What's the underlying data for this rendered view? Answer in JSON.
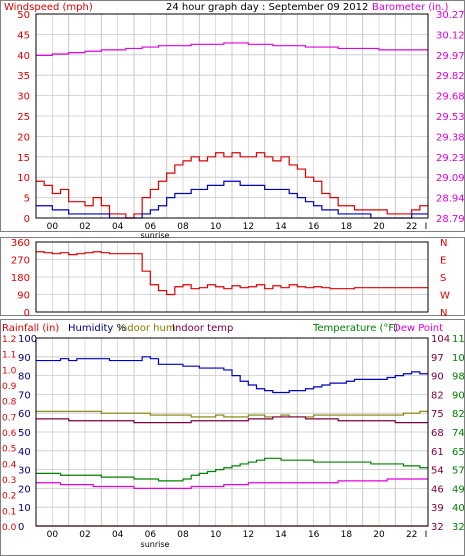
{
  "header": {
    "title": "24 hour graph day : September 09 2012",
    "left_label": "Windspeed (mph)",
    "right_label": "Barometer (in.)"
  },
  "colors": {
    "grid": "#c8c8c8",
    "axis": "#000000",
    "red": "#e00000",
    "blue": "#0000c0",
    "magenta": "#e000e0",
    "olive": "#808000",
    "purple": "#800040",
    "green": "#008000",
    "navy": "#000080",
    "frame": "#808080"
  },
  "chart_data": [
    {
      "type": "line",
      "x_ticks": [
        "00",
        "02",
        "04",
        "06",
        "08",
        "10",
        "12",
        "14",
        "16",
        "18",
        "20",
        "22",
        "I"
      ],
      "sunrise_label": "sunrise",
      "left_axis": {
        "label": "Windspeed (mph)",
        "ticks": [
          0,
          5,
          10,
          15,
          20,
          25,
          30,
          35,
          40,
          45,
          50
        ],
        "ylim": [
          0,
          50
        ]
      },
      "right_axis": {
        "label": "Barometer (in.)",
        "ticks": [
          "28.79",
          "28.94",
          "29.09",
          "29.23",
          "29.38",
          "29.53",
          "29.68",
          "29.82",
          "29.97",
          "30.12",
          "30.27"
        ],
        "ylim": [
          28.79,
          30.27
        ]
      },
      "x": [
        0,
        0.5,
        1,
        1.5,
        2,
        2.5,
        3,
        3.5,
        4,
        4.5,
        5,
        5.5,
        6,
        6.5,
        7,
        7.5,
        8,
        8.5,
        9,
        9.5,
        10,
        10.5,
        11,
        11.5,
        12,
        12.5,
        13,
        13.5,
        14,
        14.5,
        15,
        15.5,
        16,
        16.5,
        17,
        17.5,
        18,
        18.5,
        19,
        19.5,
        20,
        20.5,
        21,
        21.5,
        22,
        22.5,
        23,
        23.5
      ],
      "series": [
        {
          "color": "red",
          "axis": "left",
          "values": [
            9,
            8,
            6,
            7,
            4,
            4,
            3,
            5,
            3,
            1,
            1,
            0,
            1,
            5,
            7,
            9,
            11,
            13,
            14,
            15,
            14,
            15,
            16,
            15,
            16,
            15,
            15,
            16,
            15,
            14,
            15,
            13,
            12,
            10,
            9,
            6,
            5,
            3,
            3,
            2,
            2,
            2,
            2,
            1,
            1,
            1,
            2,
            3
          ]
        },
        {
          "color": "blue",
          "axis": "left",
          "values": [
            3,
            3,
            2,
            2,
            1,
            1,
            1,
            1,
            1,
            0,
            0,
            0,
            0,
            1,
            2,
            3,
            5,
            6,
            6,
            7,
            7,
            8,
            8,
            9,
            9,
            8,
            8,
            8,
            7,
            7,
            7,
            6,
            5,
            4,
            3,
            2,
            2,
            1,
            1,
            1,
            1,
            0,
            0,
            0,
            0,
            0,
            1,
            1
          ]
        },
        {
          "color": "magenta",
          "axis": "right",
          "values": [
            29.97,
            29.97,
            29.98,
            29.98,
            29.99,
            29.99,
            30.0,
            30.0,
            30.01,
            30.01,
            30.01,
            30.02,
            30.02,
            30.03,
            30.03,
            30.04,
            30.04,
            30.04,
            30.04,
            30.05,
            30.05,
            30.05,
            30.05,
            30.06,
            30.06,
            30.06,
            30.05,
            30.05,
            30.05,
            30.04,
            30.04,
            30.04,
            30.04,
            30.03,
            30.03,
            30.03,
            30.03,
            30.02,
            30.02,
            30.02,
            30.02,
            30.02,
            30.01,
            30.01,
            30.01,
            30.01,
            30.01,
            30.01
          ]
        }
      ]
    },
    {
      "type": "line",
      "left_axis": {
        "ticks": [
          0,
          90,
          180,
          270,
          360
        ],
        "ylim": [
          0,
          360
        ]
      },
      "right_axis": {
        "ticks": [
          "N",
          "W",
          "S",
          "E",
          "N"
        ]
      },
      "x": [
        0,
        0.5,
        1,
        1.5,
        2,
        2.5,
        3,
        3.5,
        4,
        4.5,
        5,
        5.5,
        6,
        6.5,
        7,
        7.5,
        8,
        8.5,
        9,
        9.5,
        10,
        10.5,
        11,
        11.5,
        12,
        12.5,
        13,
        13.5,
        14,
        14.5,
        15,
        15.5,
        16,
        16.5,
        17,
        17.5,
        18,
        18.5,
        19,
        19.5,
        20,
        20.5,
        21,
        21.5,
        22,
        22.5,
        23,
        23.5
      ],
      "series": [
        {
          "color": "red",
          "axis": "left",
          "values": [
            310,
            305,
            300,
            305,
            295,
            300,
            305,
            310,
            305,
            300,
            300,
            300,
            300,
            210,
            140,
            110,
            90,
            130,
            140,
            120,
            125,
            140,
            130,
            120,
            135,
            125,
            130,
            140,
            120,
            135,
            125,
            140,
            130,
            125,
            130,
            125,
            120,
            120,
            120,
            125,
            125,
            125,
            125,
            125,
            125,
            125,
            125,
            125
          ]
        }
      ]
    },
    {
      "type": "line",
      "legend": [
        "Rainfall (in)",
        "Humidity %",
        "Indoor hum",
        "Indoor temp",
        "Temperature (°F)",
        "Dew Point"
      ],
      "left_axis_rain": {
        "ticks": [
          "0.0",
          "0.1",
          "0.2",
          "0.3",
          "0.4",
          "0.5",
          "0.6",
          "0.7",
          "0.8",
          "0.9",
          "1.0",
          "1.1",
          "1.2"
        ]
      },
      "left_axis_hum": {
        "ticks": [
          "0",
          "10",
          "20",
          "30",
          "40",
          "50",
          "60",
          "70",
          "80",
          "90",
          "100"
        ],
        "ylim": [
          0,
          100
        ]
      },
      "right_axis_a": {
        "ticks": [
          "32",
          "40",
          "49",
          "57",
          "65",
          "74",
          "82",
          "90",
          "98",
          "107",
          "115"
        ],
        "ylim": [
          32,
          115
        ]
      },
      "right_axis_b": {
        "ticks": [
          "32",
          "39",
          "46",
          "54",
          "61",
          "68",
          "75",
          "82",
          "90",
          "97",
          "104"
        ]
      },
      "x": [
        0,
        0.5,
        1,
        1.5,
        2,
        2.5,
        3,
        3.5,
        4,
        4.5,
        5,
        5.5,
        6,
        6.5,
        7,
        7.5,
        8,
        8.5,
        9,
        9.5,
        10,
        10.5,
        11,
        11.5,
        12,
        12.5,
        13,
        13.5,
        14,
        14.5,
        15,
        15.5,
        16,
        16.5,
        17,
        17.5,
        18,
        18.5,
        19,
        19.5,
        20,
        20.5,
        21,
        21.5,
        22,
        22.5,
        23,
        23.5
      ],
      "series": [
        {
          "name": "Humidity %",
          "color": "blue",
          "axis": "hum",
          "values": [
            88,
            88,
            88,
            89,
            88,
            89,
            89,
            89,
            89,
            88,
            88,
            88,
            88,
            90,
            89,
            86,
            86,
            86,
            85,
            85,
            84,
            84,
            84,
            83,
            80,
            77,
            75,
            73,
            72,
            71,
            71,
            72,
            72,
            73,
            74,
            75,
            76,
            76,
            77,
            78,
            78,
            78,
            78,
            79,
            80,
            81,
            82,
            81
          ]
        },
        {
          "name": "Indoor hum",
          "color": "olive",
          "axis": "hum",
          "values": [
            61,
            61,
            61,
            61,
            61,
            61,
            61,
            61,
            60,
            60,
            60,
            60,
            60,
            60,
            59,
            59,
            59,
            59,
            59,
            58,
            58,
            58,
            59,
            58,
            58,
            58,
            59,
            59,
            58,
            58,
            59,
            58,
            58,
            58,
            59,
            59,
            59,
            59,
            59,
            59,
            59,
            59,
            59,
            59,
            59,
            60,
            60,
            61
          ]
        },
        {
          "name": "Indoor temp",
          "color": "purple",
          "axis": "hum",
          "values": [
            57,
            57,
            57,
            57,
            56,
            56,
            56,
            56,
            56,
            56,
            56,
            56,
            55,
            55,
            55,
            55,
            55,
            55,
            55,
            56,
            56,
            56,
            56,
            56,
            56,
            56,
            57,
            57,
            57,
            58,
            58,
            58,
            58,
            57,
            57,
            57,
            57,
            56,
            56,
            56,
            56,
            56,
            56,
            56,
            55,
            55,
            55,
            55
          ]
        },
        {
          "name": "Temperature (°F)",
          "color": "green",
          "axis": "hum",
          "values": [
            28,
            28,
            28,
            27,
            27,
            27,
            27,
            27,
            26,
            26,
            26,
            26,
            25,
            25,
            25,
            24,
            24,
            24,
            25,
            27,
            28,
            29,
            30,
            31,
            32,
            33,
            34,
            35,
            36,
            36,
            35,
            35,
            35,
            35,
            34,
            34,
            34,
            34,
            34,
            34,
            34,
            33,
            33,
            33,
            33,
            32,
            32,
            31
          ]
        },
        {
          "name": "Dew Point",
          "color": "magenta",
          "axis": "hum",
          "values": [
            23,
            23,
            23,
            22,
            22,
            22,
            22,
            21,
            21,
            21,
            21,
            21,
            20,
            20,
            20,
            20,
            20,
            20,
            20,
            21,
            21,
            21,
            21,
            22,
            22,
            22,
            23,
            23,
            23,
            23,
            23,
            23,
            23,
            23,
            23,
            23,
            23,
            24,
            24,
            24,
            24,
            24,
            24,
            25,
            25,
            25,
            25,
            25
          ]
        },
        {
          "name": "Rainfall (in)",
          "color": "red",
          "axis": "hum",
          "values": [
            0,
            0,
            0,
            0,
            0,
            0,
            0,
            0,
            0,
            0,
            0,
            0,
            0,
            0,
            0,
            0,
            0,
            0,
            0,
            0,
            0,
            0,
            0,
            0,
            0,
            0,
            0,
            0,
            0,
            0,
            0,
            0,
            0,
            0,
            0,
            0,
            0,
            0,
            0,
            0,
            0,
            0,
            0,
            0,
            0,
            0,
            0,
            0
          ]
        }
      ],
      "x_ticks": [
        "00",
        "02",
        "04",
        "06",
        "08",
        "10",
        "12",
        "14",
        "16",
        "18",
        "20",
        "22",
        "I"
      ],
      "sunrise_label": "sunrise"
    }
  ]
}
